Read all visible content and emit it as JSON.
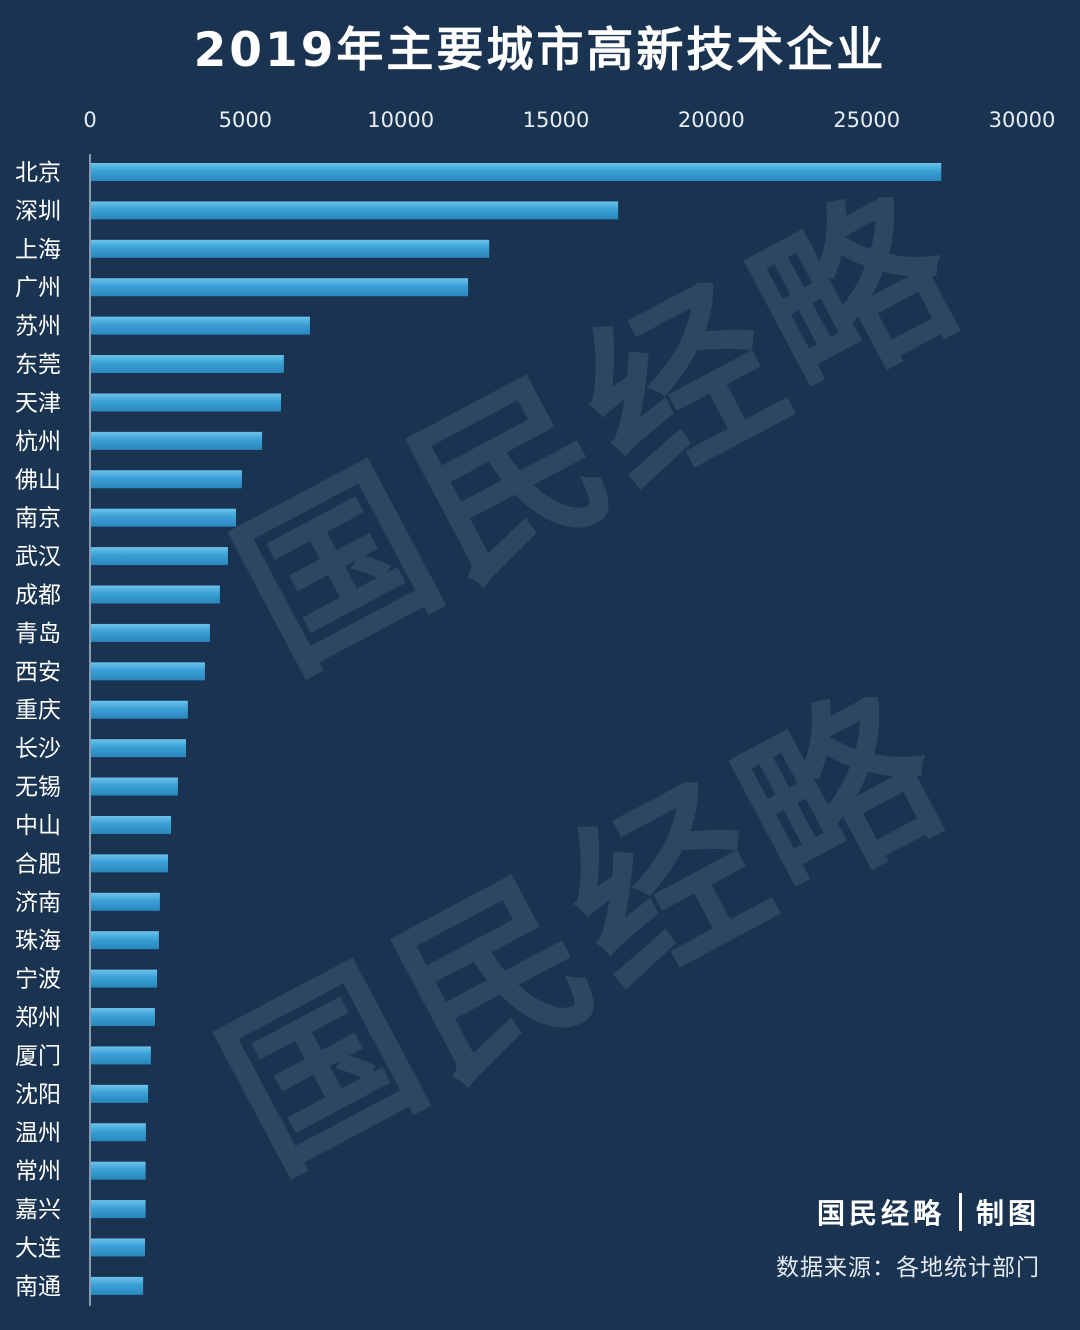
{
  "watermark": "国民经略",
  "footer": {
    "brand": "国民经略",
    "credit": "制图",
    "source": "数据来源：各地统计部门"
  },
  "colors": {
    "background": "#193350",
    "bar_top": "#6cc3ec",
    "bar_mid": "#3aa0d6",
    "bar_bottom": "#2a86bb",
    "axis": "#8a9bb0",
    "text": "#ffffff"
  },
  "chart_data": {
    "type": "bar",
    "orientation": "horizontal",
    "title": "2019年主要城市高新技术企业",
    "categories": [
      "北京",
      "深圳",
      "上海",
      "广州",
      "苏州",
      "东莞",
      "天津",
      "杭州",
      "佛山",
      "南京",
      "武汉",
      "成都",
      "青岛",
      "西安",
      "重庆",
      "长沙",
      "无锡",
      "中山",
      "合肥",
      "济南",
      "珠海",
      "宁波",
      "郑州",
      "厦门",
      "沈阳",
      "温州",
      "常州",
      "嘉兴",
      "大连",
      "南通"
    ],
    "values": [
      27400,
      17000,
      12850,
      12170,
      7080,
      6240,
      6150,
      5540,
      4890,
      4700,
      4440,
      4180,
      3860,
      3700,
      3150,
      3090,
      2830,
      2610,
      2510,
      2250,
      2220,
      2160,
      2090,
      1960,
      1870,
      1800,
      1790,
      1790,
      1770,
      1710
    ],
    "xlim": [
      0,
      30000
    ],
    "xticks": [
      0,
      5000,
      10000,
      15000,
      20000,
      25000,
      30000
    ],
    "xaxis_position": "top",
    "grid": false,
    "legend": "none"
  }
}
